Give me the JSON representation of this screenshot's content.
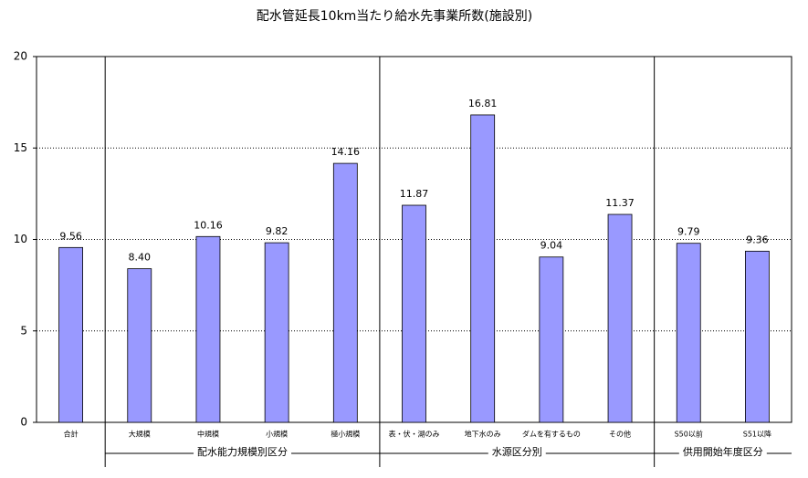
{
  "chart_data": {
    "type": "bar",
    "title": "配水管延長10km当たり給水先事業所数(施設別)",
    "categories": [
      "合計",
      "大規模",
      "中規模",
      "小規模",
      "極小規模",
      "表・伏・湖のみ",
      "地下水のみ",
      "ダムを有するもの",
      "その他",
      "S50以前",
      "S51以降"
    ],
    "values": [
      9.56,
      8.4,
      10.16,
      9.82,
      14.16,
      11.87,
      16.81,
      9.04,
      11.37,
      9.79,
      9.36
    ],
    "value_labels": [
      "9.56",
      "8.40",
      "10.16",
      "9.82",
      "14.16",
      "11.87",
      "16.81",
      "9.04",
      "11.37",
      "9.79",
      "9.36"
    ],
    "groups": [
      {
        "name": "配水能力規模別区分",
        "first": 1,
        "last": 4
      },
      {
        "name": "水源区分別",
        "first": 5,
        "last": 8
      },
      {
        "name": "供用開始年度区分",
        "first": 9,
        "last": 10
      }
    ],
    "color": "#9999ff",
    "ylim": [
      0,
      20
    ],
    "yticks": [
      0,
      5,
      10,
      15,
      20
    ],
    "grid": true
  }
}
